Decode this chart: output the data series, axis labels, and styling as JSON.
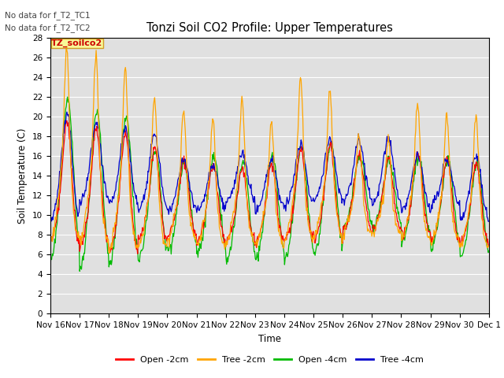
{
  "title": "Tonzi Soil CO2 Profile: Upper Temperatures",
  "xlabel": "Time",
  "ylabel": "Soil Temperature (C)",
  "ylim": [
    0,
    28
  ],
  "legend_label": "TZ_soilco2",
  "no_data_text1": "No data for f_T2_TC1",
  "no_data_text2": "No data for f_T2_TC2",
  "line_labels": [
    "Open -2cm",
    "Tree -2cm",
    "Open -4cm",
    "Tree -4cm"
  ],
  "line_colors": [
    "#ff0000",
    "#ffa500",
    "#00bb00",
    "#0000cc"
  ],
  "x_tick_labels": [
    "Nov 16",
    "Nov 17",
    "Nov 18",
    "Nov 19",
    "Nov 20",
    "Nov 21",
    "Nov 22",
    "Nov 23",
    "Nov 24",
    "Nov 25",
    "Nov 26",
    "Nov 27",
    "Nov 28",
    "Nov 29",
    "Nov 30",
    "Dec 1"
  ],
  "background_color": "#ffffff",
  "plot_bg_color": "#e0e0e0",
  "grid_color": "#ffffff",
  "n_days": 15,
  "tree2_peak_heights": [
    26.5,
    25.8,
    24.2,
    21.5,
    20.2,
    19.2,
    21.2,
    19.0,
    23.3,
    22.0,
    17.8,
    17.5,
    20.8,
    19.7,
    19.5
  ],
  "trough_base": [
    7.5,
    7.0,
    6.8,
    7.5,
    8.0,
    7.2,
    7.0,
    6.8,
    7.0,
    7.2,
    8.5,
    8.2,
    7.5,
    7.0,
    6.5
  ]
}
